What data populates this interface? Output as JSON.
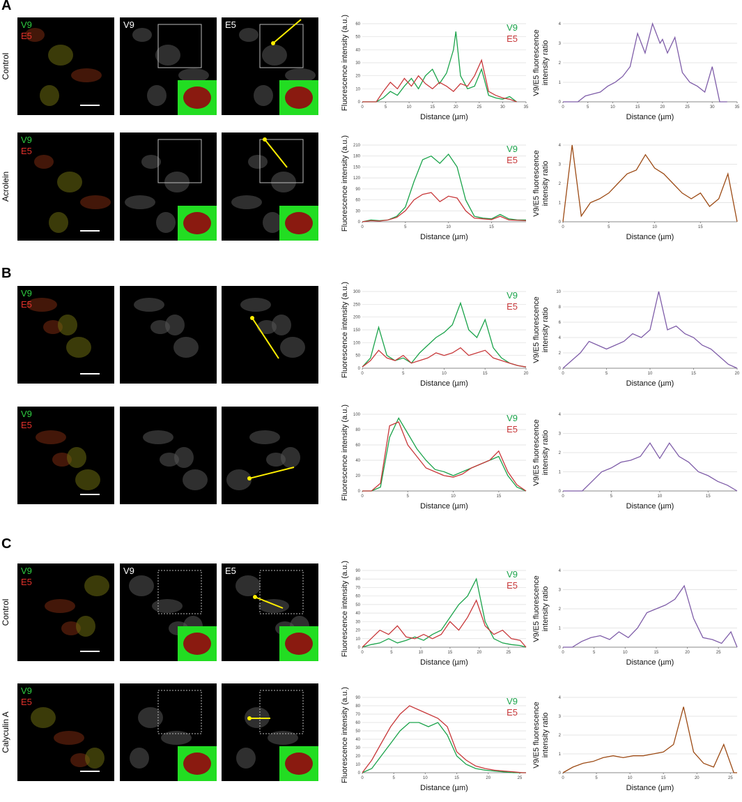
{
  "figure": {
    "panels": [
      {
        "letter": "A",
        "rows": [
          {
            "condition": "Control",
            "image_labels": [
              [
                "V9",
                "E5"
              ],
              [
                "V9"
              ],
              [
                "E5"
              ]
            ]
          },
          {
            "condition": "Acrolein",
            "image_labels": [
              [
                "V9",
                "E5"
              ],
              [],
              []
            ]
          }
        ]
      },
      {
        "letter": "B",
        "rows": [
          {
            "image_labels": [
              [
                "V9",
                "E5"
              ],
              [],
              []
            ]
          },
          {
            "image_labels": [
              [
                "V9",
                "E5"
              ],
              [],
              []
            ]
          }
        ]
      },
      {
        "letter": "C",
        "rows": [
          {
            "condition": "Control",
            "image_labels": [
              [
                "V9",
                "E5"
              ],
              [
                "V9"
              ],
              [
                "E5"
              ]
            ]
          },
          {
            "condition": "Calyculin A",
            "image_labels": [
              [
                "V9",
                "E5"
              ],
              [],
              []
            ]
          }
        ]
      }
    ]
  },
  "chart_data": [
    {
      "type": "line",
      "xlabel": "Distance (µm)",
      "ylabel": [
        "Fluorescence intensity (a.u.)"
      ],
      "x": [
        0,
        1.5,
        3,
        4.5,
        6,
        7.5,
        9,
        10.5,
        12,
        13.5,
        15,
        16.5,
        18,
        19.5,
        20,
        21,
        22.5,
        24,
        25.5,
        27,
        28.5,
        30,
        31.5,
        33
      ],
      "series": [
        {
          "name": "V9",
          "color": "#1aa34a",
          "values": [
            0,
            0,
            0,
            3,
            8,
            5,
            12,
            18,
            10,
            20,
            25,
            14,
            22,
            40,
            54,
            20,
            10,
            12,
            25,
            5,
            3,
            2,
            4,
            0
          ]
        },
        {
          "name": "E5",
          "color": "#c8383a",
          "values": [
            0,
            0,
            0,
            8,
            15,
            10,
            18,
            12,
            20,
            14,
            10,
            15,
            12,
            8,
            10,
            14,
            12,
            20,
            32,
            8,
            5,
            3,
            2,
            0
          ]
        }
      ],
      "xlim": [
        0,
        35
      ],
      "xticks": [
        0,
        5,
        10,
        15,
        20,
        25,
        30,
        35
      ],
      "ylim": [
        0,
        60
      ],
      "yticks": [
        0,
        10,
        20,
        30,
        40,
        50,
        60
      ],
      "grid": true
    },
    {
      "type": "line",
      "xlabel": "Distance (µm)",
      "ylabel": [
        "V9/E5 fluorescence",
        "intensity ratio"
      ],
      "x": [
        0,
        1.5,
        3,
        4.5,
        6,
        7.5,
        9,
        10.5,
        12,
        13.5,
        15,
        16.5,
        18,
        19.5,
        20,
        21,
        22.5,
        24,
        25.5,
        27,
        28.5,
        30,
        31.5,
        33
      ],
      "series": [
        {
          "color": "#7e5ca8",
          "values": [
            0,
            0,
            0,
            0.3,
            0.4,
            0.5,
            0.8,
            1,
            1.3,
            1.8,
            3.5,
            2.5,
            4,
            3,
            3.2,
            2.5,
            3.3,
            1.5,
            1,
            0.8,
            0.5,
            1.8,
            0,
            0
          ]
        }
      ],
      "xlim": [
        0,
        35
      ],
      "xticks": [
        0,
        5,
        10,
        15,
        20,
        25,
        30,
        35
      ],
      "ylim": [
        0,
        4
      ],
      "yticks": [
        0,
        1,
        2,
        3,
        4
      ],
      "grid": true
    },
    {
      "type": "line",
      "xlabel": "Distance (µm)",
      "ylabel": [
        "Fluorescence intensity (a.u.)"
      ],
      "x": [
        0,
        1,
        2,
        3,
        4,
        5,
        6,
        7,
        8,
        9,
        10,
        11,
        12,
        13,
        14,
        15,
        16,
        17,
        18,
        19
      ],
      "series": [
        {
          "name": "V9",
          "color": "#1aa34a",
          "values": [
            0,
            5,
            3,
            5,
            15,
            40,
            110,
            170,
            180,
            160,
            185,
            150,
            60,
            15,
            10,
            8,
            20,
            8,
            5,
            5
          ]
        },
        {
          "name": "E5",
          "color": "#c8383a",
          "values": [
            0,
            3,
            2,
            5,
            12,
            30,
            60,
            75,
            80,
            55,
            70,
            65,
            30,
            10,
            8,
            6,
            15,
            5,
            4,
            3
          ]
        }
      ],
      "xlim": [
        0,
        19
      ],
      "xticks": [
        0,
        5,
        10,
        15
      ],
      "ylim": [
        0,
        210
      ],
      "yticks": [
        0,
        30,
        60,
        90,
        120,
        150,
        180,
        210
      ],
      "grid": true
    },
    {
      "type": "line",
      "xlabel": "Distance (µm)",
      "ylabel": [
        "V9/E5 fluorescence",
        "intensity ratio"
      ],
      "x": [
        0,
        1,
        2,
        3,
        4,
        5,
        6,
        7,
        8,
        9,
        10,
        11,
        12,
        13,
        14,
        15,
        16,
        17,
        18,
        19
      ],
      "series": [
        {
          "color": "#9c4a14",
          "values": [
            0,
            4,
            0.3,
            1,
            1.2,
            1.5,
            2,
            2.5,
            2.7,
            3.5,
            2.8,
            2.5,
            2,
            1.5,
            1.2,
            1.5,
            0.8,
            1.2,
            2.5,
            0
          ]
        }
      ],
      "xlim": [
        0,
        19
      ],
      "xticks": [
        0,
        5,
        10,
        15
      ],
      "ylim": [
        0,
        4
      ],
      "yticks": [
        0,
        1,
        2,
        3,
        4
      ],
      "grid": true
    },
    {
      "type": "line",
      "xlabel": "Distance (µm)",
      "ylabel": [
        "Fluorescence intensity (a.u.)"
      ],
      "x": [
        0,
        1,
        2,
        3,
        4,
        5,
        6,
        7,
        8,
        9,
        10,
        11,
        12,
        13,
        14,
        15,
        16,
        17,
        18,
        19,
        20
      ],
      "series": [
        {
          "name": "V9",
          "color": "#1aa34a",
          "values": [
            5,
            40,
            160,
            50,
            30,
            40,
            20,
            60,
            90,
            120,
            140,
            170,
            255,
            150,
            120,
            190,
            80,
            40,
            20,
            10,
            5
          ]
        },
        {
          "name": "E5",
          "color": "#c8383a",
          "values": [
            5,
            30,
            70,
            40,
            30,
            50,
            20,
            30,
            40,
            60,
            50,
            60,
            80,
            50,
            60,
            70,
            40,
            30,
            20,
            10,
            5
          ]
        }
      ],
      "xlim": [
        0,
        20
      ],
      "xticks": [
        0,
        5,
        10,
        15,
        20
      ],
      "ylim": [
        0,
        300
      ],
      "yticks": [
        0,
        50,
        100,
        150,
        200,
        250,
        300
      ],
      "grid": true
    },
    {
      "type": "line",
      "xlabel": "Distance (µm)",
      "ylabel": [
        "V9/E5 fluorescence",
        "intensity ratio"
      ],
      "x": [
        0,
        1,
        2,
        3,
        4,
        5,
        6,
        7,
        8,
        9,
        10,
        11,
        12,
        13,
        14,
        15,
        16,
        17,
        18,
        19,
        20
      ],
      "series": [
        {
          "color": "#7e5ca8",
          "values": [
            0,
            1,
            2,
            3.5,
            3,
            2.5,
            3,
            3.5,
            4.5,
            4,
            5,
            10,
            5,
            5.5,
            4.5,
            4,
            3,
            2.5,
            1.5,
            0.5,
            0
          ]
        }
      ],
      "xlim": [
        0,
        20
      ],
      "xticks": [
        0,
        5,
        10,
        15,
        20
      ],
      "ylim": [
        0,
        10
      ],
      "yticks": [
        0,
        2,
        4,
        6,
        8,
        10
      ],
      "grid": true
    },
    {
      "type": "line",
      "xlabel": "Distance (µm)",
      "ylabel": [
        "Fluorescence intensity (a.u.)"
      ],
      "x": [
        0,
        1,
        2,
        3,
        4,
        5,
        6,
        7,
        8,
        9,
        10,
        11,
        12,
        13,
        14,
        15,
        16,
        17,
        18
      ],
      "series": [
        {
          "name": "V9",
          "color": "#1aa34a",
          "values": [
            0,
            0,
            5,
            70,
            95,
            75,
            55,
            40,
            28,
            25,
            20,
            25,
            30,
            35,
            40,
            45,
            20,
            5,
            0
          ]
        },
        {
          "name": "E5",
          "color": "#c8383a",
          "values": [
            0,
            0,
            10,
            85,
            90,
            60,
            45,
            30,
            25,
            20,
            18,
            22,
            30,
            35,
            40,
            52,
            25,
            8,
            0
          ]
        }
      ],
      "xlim": [
        0,
        18
      ],
      "xticks": [
        0,
        5,
        10,
        15
      ],
      "ylim": [
        0,
        100
      ],
      "yticks": [
        0,
        20,
        40,
        60,
        80,
        100
      ],
      "grid": true
    },
    {
      "type": "line",
      "xlabel": "Distance (µm)",
      "ylabel": [
        "V9/E5 fluorescence",
        "intensity ratio"
      ],
      "x": [
        0,
        1,
        2,
        3,
        4,
        5,
        6,
        7,
        8,
        9,
        10,
        11,
        12,
        13,
        14,
        15,
        16,
        17,
        18
      ],
      "series": [
        {
          "color": "#7e5ca8",
          "values": [
            0,
            0,
            0,
            0.5,
            1,
            1.2,
            1.5,
            1.6,
            1.8,
            2.5,
            1.7,
            2.5,
            1.8,
            1.5,
            1,
            0.8,
            0.5,
            0.3,
            0
          ]
        }
      ],
      "xlim": [
        0,
        18
      ],
      "xticks": [
        0,
        5,
        10,
        15
      ],
      "ylim": [
        0,
        4
      ],
      "yticks": [
        0,
        1,
        2,
        3,
        4
      ],
      "grid": true
    },
    {
      "type": "line",
      "xlabel": "Distance (µm)",
      "ylabel": [
        "Fluorescence intensity (a.u.)"
      ],
      "x": [
        0,
        1.5,
        3,
        4.5,
        6,
        7.5,
        9,
        10.5,
        12,
        13.5,
        15,
        16.5,
        18,
        19.5,
        21,
        22.5,
        24,
        25.5,
        27,
        28
      ],
      "series": [
        {
          "name": "V9",
          "color": "#1aa34a",
          "values": [
            0,
            3,
            5,
            10,
            5,
            8,
            12,
            8,
            15,
            20,
            35,
            50,
            60,
            80,
            30,
            10,
            5,
            3,
            2,
            0
          ]
        },
        {
          "name": "E5",
          "color": "#c8383a",
          "values": [
            0,
            10,
            20,
            15,
            25,
            12,
            10,
            15,
            10,
            15,
            30,
            20,
            35,
            55,
            25,
            15,
            20,
            10,
            8,
            0
          ]
        }
      ],
      "xlim": [
        0,
        28
      ],
      "xticks": [
        0,
        5,
        10,
        15,
        20,
        25
      ],
      "ylim": [
        0,
        90
      ],
      "yticks": [
        0,
        10,
        20,
        30,
        40,
        50,
        60,
        70,
        80,
        90
      ],
      "grid": true
    },
    {
      "type": "line",
      "xlabel": "Distance (µm)",
      "ylabel": [
        "V9/E5 fluorescence",
        "intensity ratio"
      ],
      "x": [
        0,
        1.5,
        3,
        4.5,
        6,
        7.5,
        9,
        10.5,
        12,
        13.5,
        15,
        16.5,
        18,
        19.5,
        21,
        22.5,
        24,
        25.5,
        27,
        28
      ],
      "series": [
        {
          "color": "#7e5ca8",
          "values": [
            0,
            0,
            0.3,
            0.5,
            0.6,
            0.4,
            0.8,
            0.5,
            1,
            1.8,
            2,
            2.2,
            2.5,
            3.2,
            1.5,
            0.5,
            0.4,
            0.2,
            0.8,
            0
          ]
        }
      ],
      "xlim": [
        0,
        28
      ],
      "xticks": [
        0,
        5,
        10,
        15,
        20,
        25
      ],
      "ylim": [
        0,
        4
      ],
      "yticks": [
        0,
        1,
        2,
        3,
        4
      ],
      "grid": true
    },
    {
      "type": "line",
      "xlabel": "Distance (µm)",
      "ylabel": [
        "Fluorescence intensity (a.u.)"
      ],
      "x": [
        0,
        1.5,
        3,
        4.5,
        6,
        7.5,
        9,
        10.5,
        12,
        13.5,
        15,
        16.5,
        18,
        19.5,
        21,
        22.5,
        24,
        25.5,
        26
      ],
      "series": [
        {
          "name": "V9",
          "color": "#1aa34a",
          "values": [
            0,
            5,
            20,
            35,
            50,
            60,
            60,
            55,
            60,
            45,
            20,
            10,
            5,
            3,
            2,
            1,
            0,
            0,
            0
          ]
        },
        {
          "name": "E5",
          "color": "#c8383a",
          "values": [
            0,
            15,
            35,
            55,
            70,
            80,
            75,
            70,
            65,
            55,
            25,
            15,
            8,
            5,
            3,
            2,
            1,
            0,
            0
          ]
        }
      ],
      "xlim": [
        0,
        26
      ],
      "xticks": [
        0,
        5,
        10,
        15,
        20,
        25
      ],
      "ylim": [
        0,
        90
      ],
      "yticks": [
        0,
        10,
        20,
        30,
        40,
        50,
        60,
        70,
        80,
        90
      ],
      "grid": true
    },
    {
      "type": "line",
      "xlabel": "Distance (µm)",
      "ylabel": [
        "V9/E5 fluorescence",
        "intensity ratio"
      ],
      "x": [
        0,
        1.5,
        3,
        4.5,
        6,
        7.5,
        9,
        10.5,
        12,
        13.5,
        15,
        16.5,
        18,
        19.5,
        21,
        22.5,
        24,
        25.5,
        26
      ],
      "series": [
        {
          "color": "#9c4a14",
          "values": [
            0,
            0.3,
            0.5,
            0.6,
            0.8,
            0.9,
            0.8,
            0.9,
            0.9,
            1,
            1.1,
            1.5,
            3.5,
            1.1,
            0.5,
            0.3,
            1.5,
            0,
            0
          ]
        }
      ],
      "xlim": [
        0,
        26
      ],
      "xticks": [
        0,
        5,
        10,
        15,
        20,
        25
      ],
      "ylim": [
        0,
        4
      ],
      "yticks": [
        0,
        1,
        2,
        3,
        4
      ],
      "grid": true
    }
  ]
}
